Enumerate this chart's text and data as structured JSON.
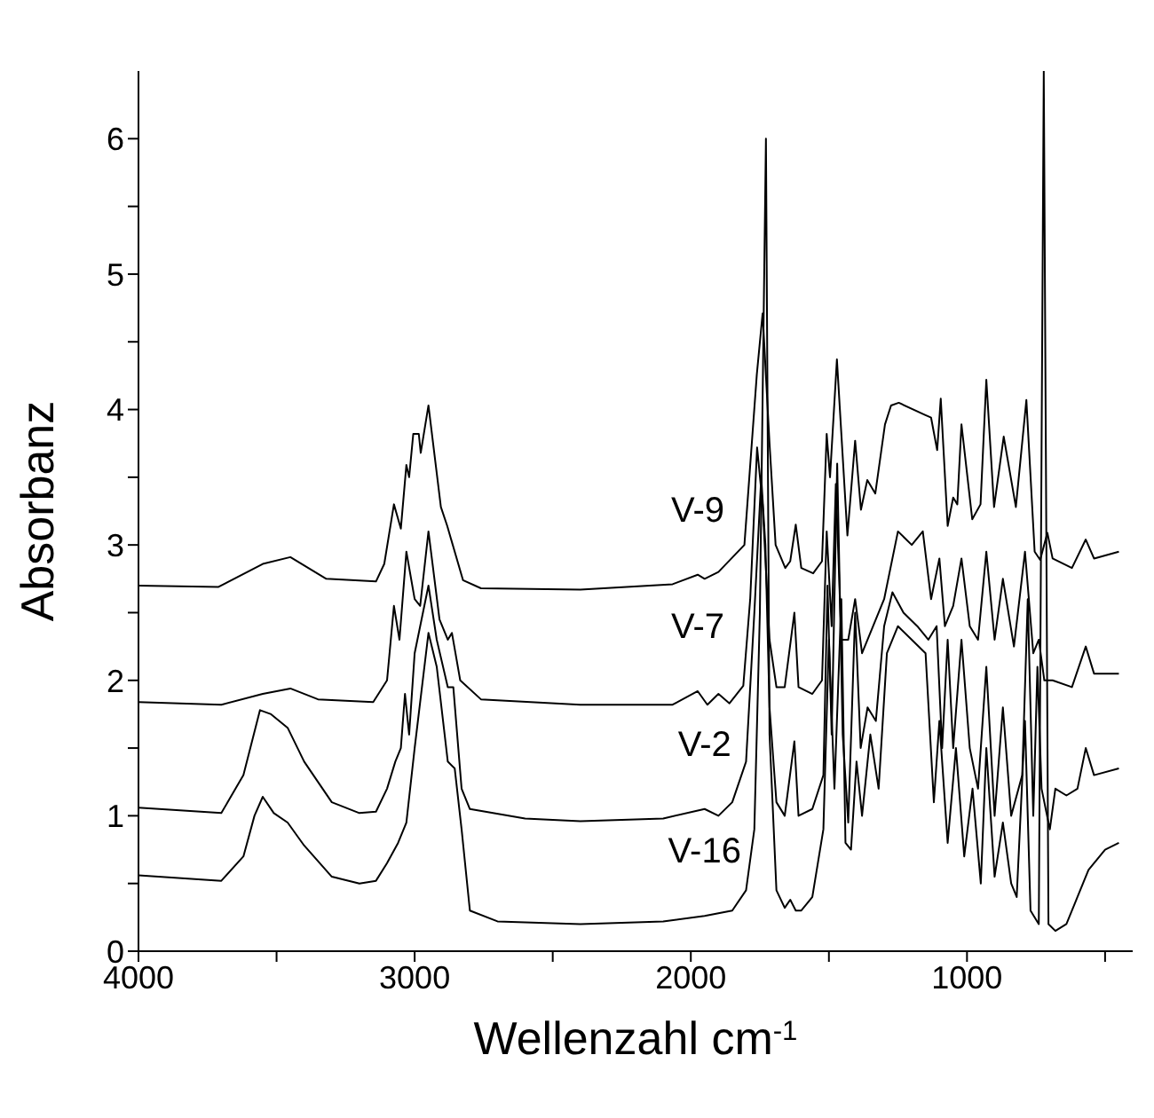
{
  "chart_data": {
    "type": "line",
    "xlabel": "Wellenzahl cm$^{-1}$",
    "ylabel": "Absorbanz",
    "xlim": [
      4000,
      400
    ],
    "ylim": [
      0,
      6.5
    ],
    "xticks": [
      4000,
      {
        "value": 3500,
        "label": null
      },
      3000,
      {
        "value": 2500,
        "label": null
      },
      2000,
      {
        "value": 1500,
        "label": null
      },
      1000,
      {
        "value": 500,
        "label": null
      }
    ],
    "yticks": [
      0,
      {
        "value": 0.5,
        "label": null
      },
      1,
      {
        "value": 1.5,
        "label": null
      },
      2,
      {
        "value": 2.5,
        "label": null
      },
      3,
      {
        "value": 3.5,
        "label": null
      },
      4,
      {
        "value": 4.5,
        "label": null
      },
      5,
      {
        "value": 5.5,
        "label": null
      },
      6
    ],
    "marker": "none",
    "line_style": "solid",
    "series": [
      {
        "name": "V-9",
        "color": "#000000",
        "x": [
          4000,
          3710,
          3550,
          3450,
          3320,
          3140,
          3110,
          3075,
          3050,
          3030,
          3020,
          3005,
          2985,
          2978,
          2950,
          2905,
          2882,
          2825,
          2760,
          2400,
          2066,
          1975,
          1950,
          1900,
          1806,
          1761,
          1740,
          1715,
          1693,
          1658,
          1640,
          1620,
          1600,
          1557,
          1525,
          1508,
          1496,
          1471,
          1433,
          1405,
          1384,
          1361,
          1332,
          1297,
          1275,
          1247,
          1152,
          1130,
          1108,
          1095,
          1070,
          1050,
          1035,
          1020,
          981,
          951,
          930,
          902,
          867,
          823,
          785,
          755,
          735,
          709,
          690,
          620,
          570,
          540,
          450
        ],
        "values": [
          2.7,
          2.69,
          2.86,
          2.91,
          2.75,
          2.73,
          2.86,
          3.3,
          3.12,
          3.59,
          3.5,
          3.82,
          3.82,
          3.68,
          4.03,
          3.28,
          3.14,
          2.74,
          2.68,
          2.67,
          2.71,
          2.78,
          2.75,
          2.8,
          3.0,
          4.26,
          4.71,
          3.75,
          3.0,
          2.83,
          2.88,
          3.15,
          2.83,
          2.79,
          2.88,
          3.82,
          3.5,
          4.37,
          3.07,
          3.77,
          3.26,
          3.48,
          3.38,
          3.89,
          4.03,
          4.05,
          3.96,
          3.94,
          3.7,
          4.08,
          3.14,
          3.35,
          3.3,
          3.89,
          3.19,
          3.3,
          4.22,
          3.28,
          3.8,
          3.28,
          4.07,
          2.95,
          2.89,
          3.09,
          2.9,
          2.83,
          3.04,
          2.9,
          2.95
        ]
      },
      {
        "name": "V-7",
        "color": "#000000",
        "x": [
          4000,
          3700,
          3550,
          3450,
          3350,
          3150,
          3100,
          3075,
          3055,
          3030,
          3000,
          2980,
          2950,
          2910,
          2880,
          2865,
          2835,
          2760,
          2400,
          2066,
          1975,
          1940,
          1900,
          1860,
          1810,
          1785,
          1760,
          1740,
          1715,
          1690,
          1660,
          1625,
          1610,
          1560,
          1525,
          1508,
          1490,
          1475,
          1455,
          1430,
          1405,
          1380,
          1340,
          1300,
          1250,
          1200,
          1160,
          1130,
          1100,
          1080,
          1050,
          1020,
          990,
          960,
          930,
          900,
          870,
          830,
          790,
          760,
          740,
          720,
          690,
          620,
          570,
          540,
          450
        ],
        "values": [
          1.84,
          1.82,
          1.9,
          1.94,
          1.86,
          1.84,
          2.0,
          2.55,
          2.3,
          2.95,
          2.6,
          2.55,
          3.1,
          2.45,
          2.3,
          2.35,
          2.0,
          1.86,
          1.82,
          1.82,
          1.92,
          1.82,
          1.9,
          1.83,
          1.96,
          2.6,
          3.72,
          3.3,
          2.3,
          1.95,
          1.95,
          2.5,
          1.95,
          1.9,
          2.0,
          3.1,
          2.4,
          3.45,
          2.3,
          2.3,
          2.6,
          2.2,
          2.4,
          2.6,
          3.1,
          3.0,
          3.1,
          2.6,
          2.9,
          2.4,
          2.55,
          2.9,
          2.4,
          2.3,
          2.95,
          2.3,
          2.75,
          2.25,
          2.95,
          2.2,
          2.3,
          2.0,
          2.0,
          1.95,
          2.25,
          2.05,
          2.05
        ]
      },
      {
        "name": "V-2",
        "color": "#000000",
        "x": [
          4000,
          3700,
          3620,
          3560,
          3520,
          3460,
          3400,
          3300,
          3200,
          3140,
          3100,
          3070,
          3050,
          3035,
          3020,
          3000,
          2950,
          2920,
          2880,
          2860,
          2830,
          2800,
          2600,
          2400,
          2100,
          1950,
          1900,
          1850,
          1800,
          1770,
          1745,
          1730,
          1715,
          1690,
          1660,
          1625,
          1610,
          1560,
          1520,
          1505,
          1490,
          1470,
          1450,
          1430,
          1405,
          1385,
          1360,
          1330,
          1300,
          1270,
          1230,
          1180,
          1140,
          1110,
          1090,
          1070,
          1050,
          1020,
          990,
          960,
          930,
          900,
          870,
          840,
          800,
          780,
          760,
          745,
          730,
          700,
          680,
          640,
          600,
          570,
          540,
          450
        ],
        "values": [
          1.06,
          1.02,
          1.3,
          1.78,
          1.75,
          1.65,
          1.4,
          1.1,
          1.02,
          1.03,
          1.2,
          1.4,
          1.5,
          1.9,
          1.6,
          2.2,
          2.7,
          2.3,
          1.95,
          1.95,
          1.2,
          1.05,
          0.98,
          0.96,
          0.98,
          1.05,
          1.0,
          1.1,
          1.4,
          2.5,
          3.5,
          3.0,
          1.8,
          1.1,
          1.0,
          1.55,
          1.0,
          1.05,
          1.3,
          2.7,
          1.6,
          3.6,
          1.6,
          0.95,
          2.5,
          1.5,
          1.8,
          1.7,
          2.4,
          2.65,
          2.5,
          2.4,
          2.3,
          2.4,
          1.5,
          2.3,
          1.5,
          2.3,
          1.5,
          1.2,
          2.1,
          1.0,
          1.8,
          1.0,
          1.3,
          2.6,
          1.0,
          2.1,
          1.2,
          0.9,
          1.2,
          1.15,
          1.2,
          1.5,
          1.3,
          1.35
        ]
      },
      {
        "name": "V-16",
        "color": "#000000",
        "x": [
          4000,
          3700,
          3620,
          3580,
          3550,
          3510,
          3460,
          3400,
          3300,
          3200,
          3140,
          3100,
          3060,
          3030,
          3000,
          2950,
          2920,
          2880,
          2855,
          2830,
          2800,
          2700,
          2400,
          2100,
          1950,
          1850,
          1800,
          1770,
          1750,
          1728,
          1715,
          1690,
          1660,
          1640,
          1620,
          1600,
          1560,
          1520,
          1500,
          1480,
          1455,
          1440,
          1420,
          1400,
          1380,
          1350,
          1320,
          1290,
          1250,
          1200,
          1150,
          1120,
          1100,
          1070,
          1040,
          1010,
          980,
          950,
          930,
          900,
          870,
          840,
          820,
          790,
          770,
          740,
          722,
          705,
          680,
          640,
          600,
          560,
          500,
          450
        ],
        "values": [
          0.56,
          0.52,
          0.7,
          1.0,
          1.14,
          1.02,
          0.95,
          0.78,
          0.55,
          0.5,
          0.52,
          0.65,
          0.8,
          0.95,
          1.5,
          2.35,
          2.1,
          1.4,
          1.35,
          0.9,
          0.3,
          0.22,
          0.2,
          0.22,
          0.26,
          0.3,
          0.45,
          0.9,
          2.5,
          6.0,
          1.6,
          0.45,
          0.32,
          0.38,
          0.3,
          0.3,
          0.4,
          0.9,
          2.3,
          1.2,
          2.6,
          0.8,
          0.75,
          1.4,
          1.0,
          1.6,
          1.2,
          2.2,
          2.4,
          2.3,
          2.2,
          1.1,
          1.7,
          0.8,
          1.5,
          0.7,
          1.2,
          0.5,
          1.5,
          0.55,
          0.95,
          0.5,
          0.4,
          1.7,
          0.3,
          0.2,
          6.5,
          0.2,
          0.15,
          0.2,
          0.4,
          0.6,
          0.75,
          0.8
        ]
      }
    ]
  }
}
